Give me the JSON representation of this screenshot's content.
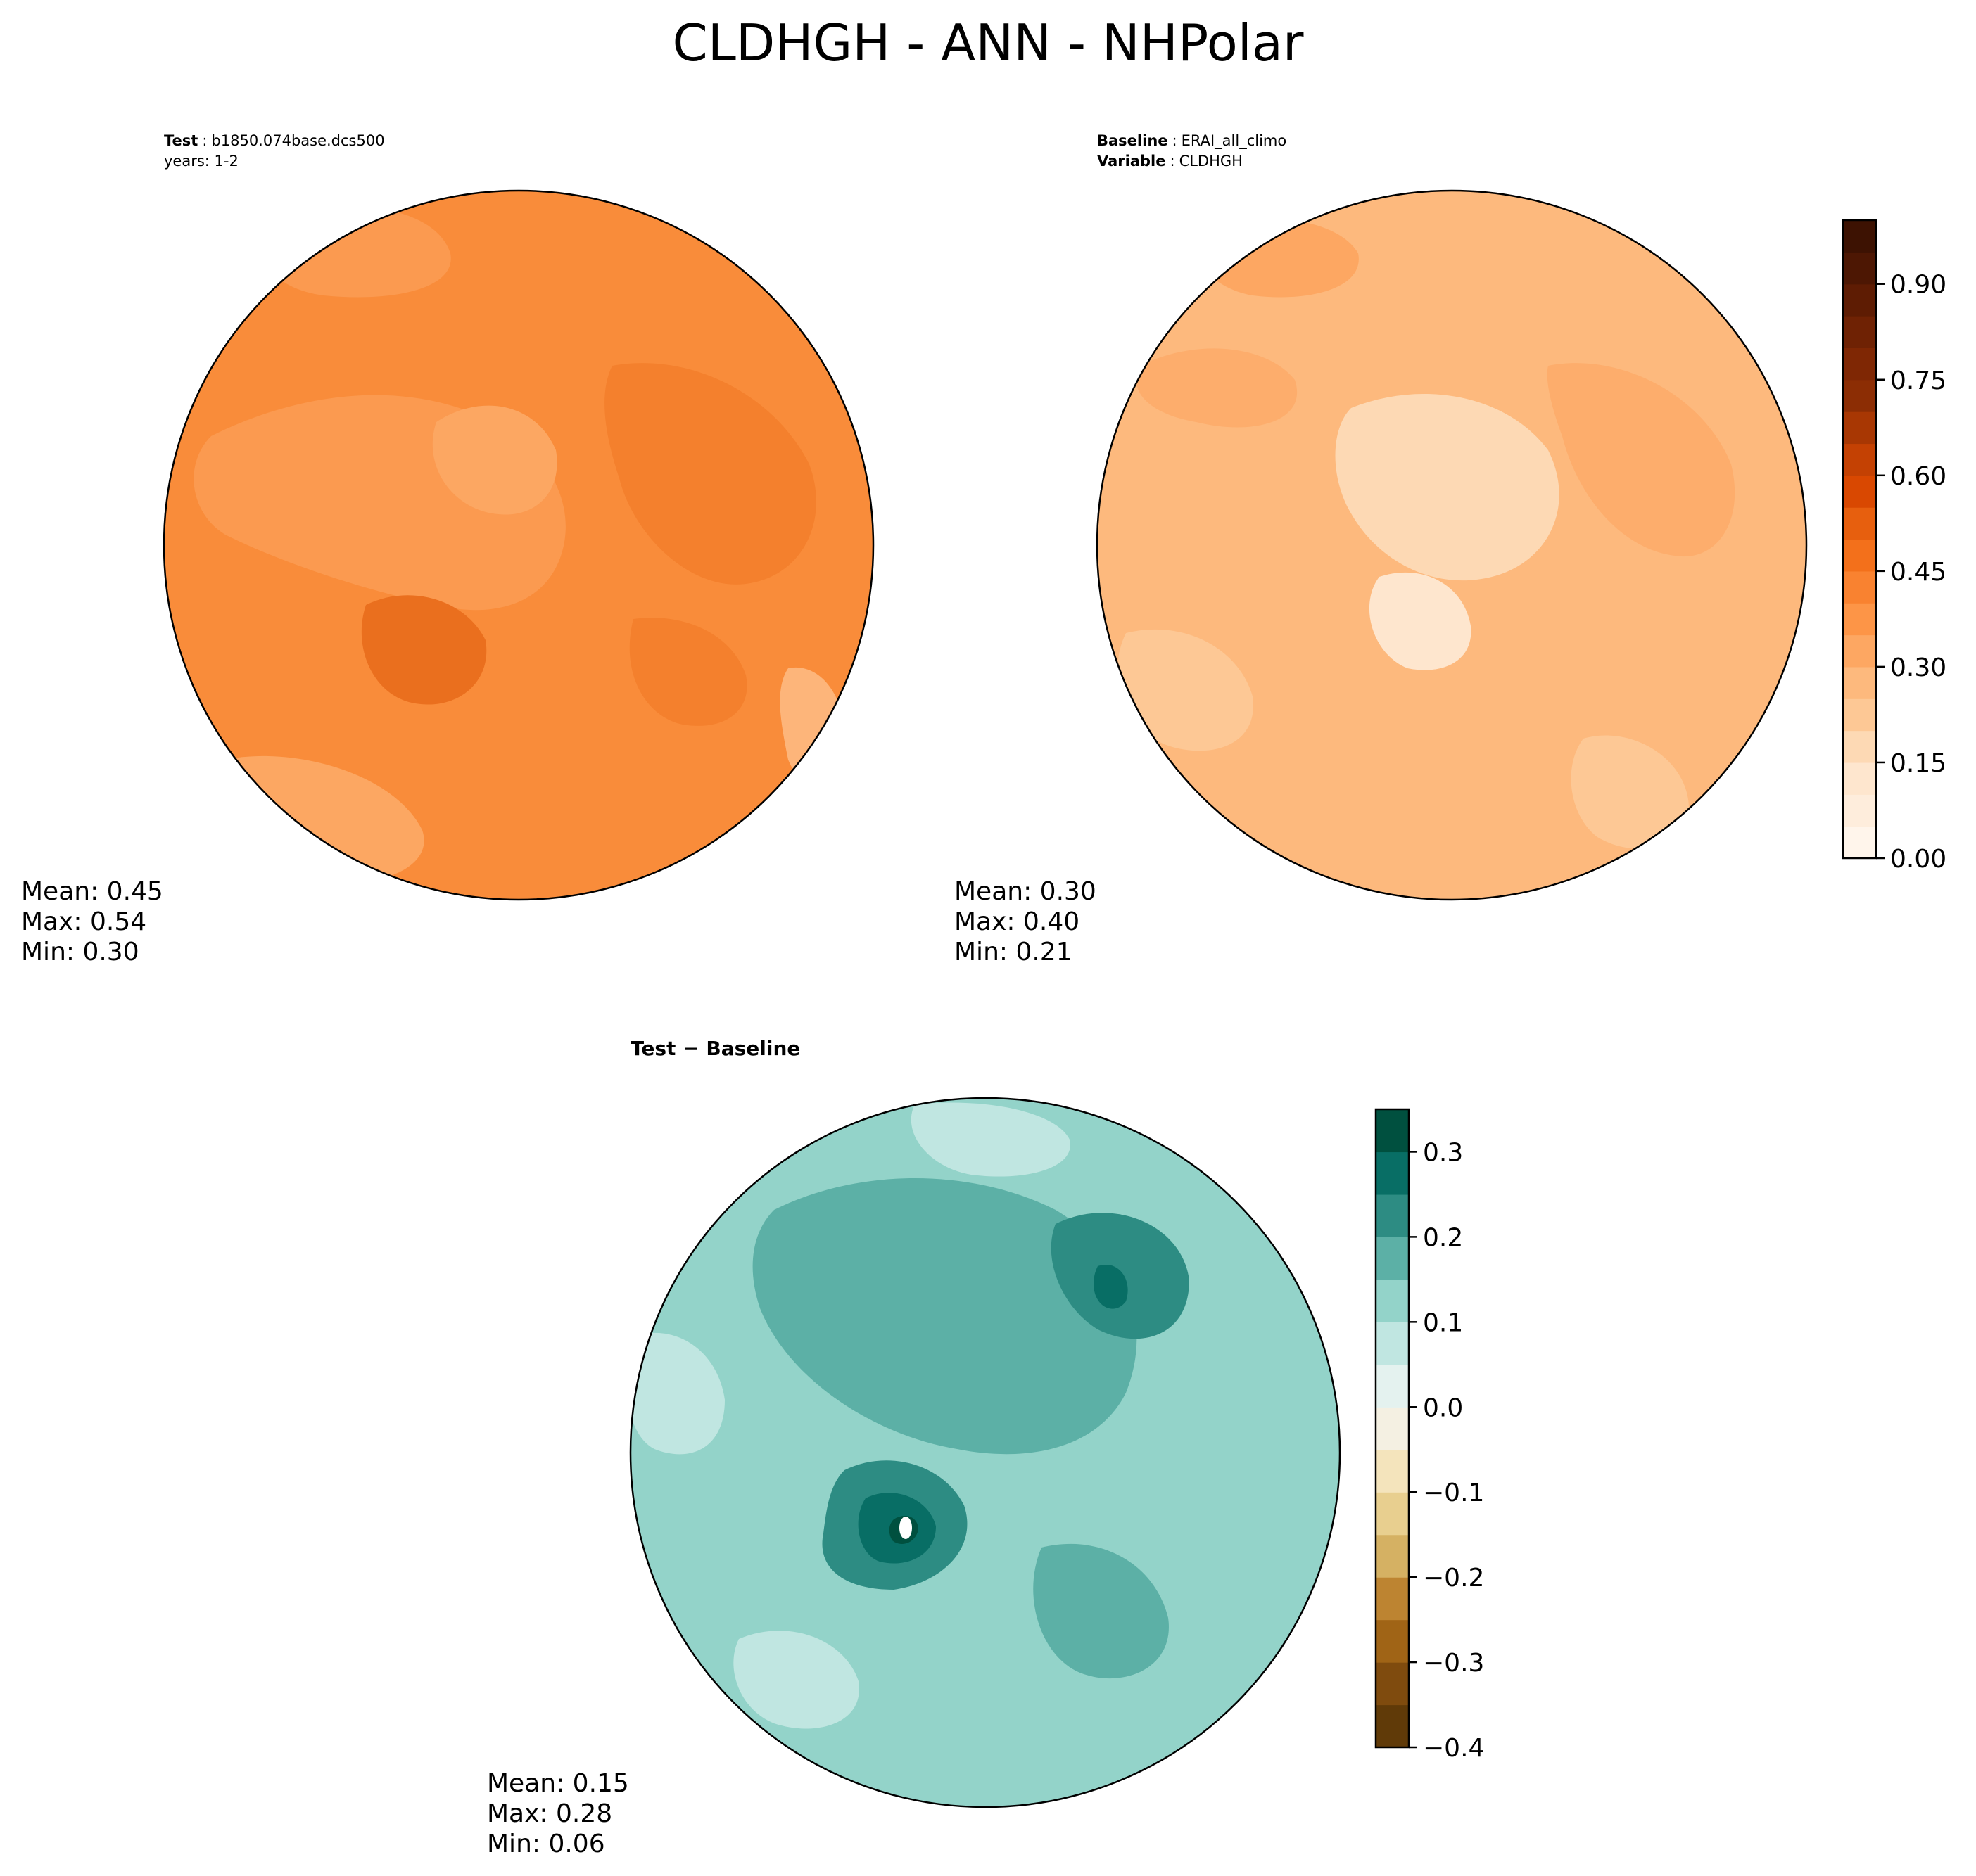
{
  "chart_data": {
    "type": "heatmap",
    "title": "CLDHGH - ANN - NHPolar",
    "projection": "north polar stereographic",
    "panels": [
      {
        "id": "test",
        "header_key": "Test",
        "header_value": "b1850.074base.dcs500",
        "header_line2": "years: 1-2",
        "stats": {
          "mean": "Mean:  0.45",
          "max": "Max:  0.54",
          "min": "Min:  0.30"
        },
        "values": {
          "mean": 0.45,
          "max": 0.54,
          "min": 0.3
        }
      },
      {
        "id": "baseline",
        "header_key": "Baseline",
        "header_value": "ERAI_all_climo",
        "header_key2": "Variable",
        "header_value2": "CLDHGH",
        "stats": {
          "mean": "Mean:  0.30",
          "max": "Max:  0.40",
          "min": "Min:  0.21"
        },
        "values": {
          "mean": 0.3,
          "max": 0.4,
          "min": 0.21
        }
      },
      {
        "id": "diff",
        "header_key": "Test − Baseline",
        "stats": {
          "mean": "Mean:  0.15",
          "max": "Max:  0.28",
          "min": "Min:  0.06"
        },
        "values": {
          "mean": 0.15,
          "max": 0.28,
          "min": 0.06
        }
      }
    ],
    "colorbars": [
      {
        "id": "field",
        "range": [
          0.0,
          1.0
        ],
        "ticks": [
          0.0,
          0.15,
          0.3,
          0.45,
          0.6,
          0.75,
          0.9
        ],
        "tick_labels": [
          "0.00",
          "0.15",
          "0.30",
          "0.45",
          "0.60",
          "0.75",
          "0.90"
        ],
        "levels": 20,
        "colormap": "Oranges",
        "colors": [
          "#fff5eb",
          "#feeddc",
          "#fee6ce",
          "#fdd9b4",
          "#fdc895",
          "#fdb97d",
          "#fda762",
          "#fd9547",
          "#f98230",
          "#f3701b",
          "#e75f0e",
          "#d94801",
          "#c44103",
          "#a83703",
          "#8c2d04",
          "#7f2704",
          "#6f2204",
          "#5e1c03",
          "#4d1703",
          "#3d1202"
        ]
      },
      {
        "id": "diff",
        "range": [
          -0.4,
          0.35
        ],
        "ticks": [
          -0.4,
          -0.3,
          -0.2,
          -0.1,
          0.0,
          0.1,
          0.2,
          0.3
        ],
        "tick_labels": [
          "−0.4",
          "−0.3",
          "−0.2",
          "−0.1",
          "0.0",
          "0.1",
          "0.2",
          "0.3"
        ],
        "levels": 15,
        "colormap": "BrBG",
        "colors": [
          "#603a08",
          "#7f4b0e",
          "#a06416",
          "#bd8431",
          "#d5b163",
          "#e8cf8f",
          "#f4e4bc",
          "#f4f0e2",
          "#e4f2ef",
          "#c0e6e1",
          "#93d3c9",
          "#5cb0a6",
          "#2d8c83",
          "#086e65",
          "#00503f"
        ]
      }
    ]
  }
}
